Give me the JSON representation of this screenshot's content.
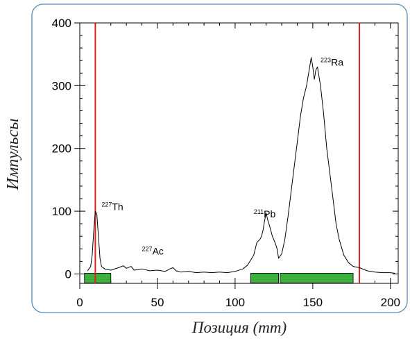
{
  "chart_data": {
    "type": "line",
    "title": "",
    "xlabel": "Позиция (mm)",
    "ylabel": "Импульсы",
    "xlim": [
      0,
      205
    ],
    "ylim": [
      -15,
      400
    ],
    "x_ticks": [
      0,
      50,
      100,
      150,
      200
    ],
    "y_ticks": [
      0,
      100,
      200,
      300,
      400
    ],
    "frame_color": "#5a8bb0",
    "series": [
      {
        "color": "#000000",
        "points": [
          [
            5,
            5
          ],
          [
            7,
            12
          ],
          [
            8,
            30
          ],
          [
            9,
            70
          ],
          [
            10,
            100
          ],
          [
            11,
            95
          ],
          [
            12,
            60
          ],
          [
            13,
            25
          ],
          [
            14,
            12
          ],
          [
            16,
            8
          ],
          [
            20,
            6
          ],
          [
            25,
            10
          ],
          [
            28,
            13
          ],
          [
            30,
            9
          ],
          [
            33,
            12
          ],
          [
            35,
            6
          ],
          [
            40,
            8
          ],
          [
            45,
            5
          ],
          [
            50,
            6
          ],
          [
            55,
            4
          ],
          [
            58,
            8
          ],
          [
            60,
            10
          ],
          [
            62,
            5
          ],
          [
            65,
            3
          ],
          [
            70,
            4
          ],
          [
            75,
            2
          ],
          [
            80,
            3
          ],
          [
            85,
            2
          ],
          [
            90,
            3
          ],
          [
            95,
            2
          ],
          [
            100,
            4
          ],
          [
            105,
            8
          ],
          [
            108,
            14
          ],
          [
            110,
            22
          ],
          [
            112,
            30
          ],
          [
            114,
            50
          ],
          [
            116,
            55
          ],
          [
            117,
            60
          ],
          [
            118,
            70
          ],
          [
            119,
            85
          ],
          [
            120,
            97
          ],
          [
            121,
            86
          ],
          [
            122,
            78
          ],
          [
            124,
            60
          ],
          [
            126,
            48
          ],
          [
            127,
            40
          ],
          [
            128,
            25
          ],
          [
            130,
            32
          ],
          [
            132,
            55
          ],
          [
            134,
            90
          ],
          [
            136,
            130
          ],
          [
            138,
            170
          ],
          [
            140,
            210
          ],
          [
            142,
            250
          ],
          [
            144,
            280
          ],
          [
            146,
            300
          ],
          [
            148,
            330
          ],
          [
            149,
            345
          ],
          [
            150,
            330
          ],
          [
            151,
            310
          ],
          [
            152,
            325
          ],
          [
            153,
            330
          ],
          [
            155,
            300
          ],
          [
            157,
            255
          ],
          [
            159,
            200
          ],
          [
            161,
            160
          ],
          [
            163,
            120
          ],
          [
            165,
            80
          ],
          [
            167,
            55
          ],
          [
            170,
            30
          ],
          [
            173,
            18
          ],
          [
            176,
            12
          ],
          [
            180,
            10
          ],
          [
            185,
            5
          ],
          [
            190,
            3
          ],
          [
            195,
            2
          ],
          [
            200,
            2
          ],
          [
            203,
            1
          ]
        ]
      }
    ],
    "vertical_lines": [
      {
        "x": 10,
        "color": "#e02020"
      },
      {
        "x": 180,
        "color": "#e02020"
      }
    ],
    "regions": [
      {
        "x0": 3,
        "x1": 20,
        "color": "#3db03d"
      },
      {
        "x0": 110,
        "x1": 128,
        "color": "#3db03d"
      },
      {
        "x0": 129,
        "x1": 176,
        "color": "#3db03d"
      }
    ],
    "annotations": [
      {
        "mass": "227",
        "element": "Th",
        "x": 14,
        "y": 102
      },
      {
        "mass": "227",
        "element": "Ac",
        "x": 40,
        "y": 31
      },
      {
        "mass": "211",
        "element": "Pb",
        "x": 112,
        "y": 90
      },
      {
        "mass": "223",
        "element": "Ra",
        "x": 155,
        "y": 332
      }
    ]
  }
}
